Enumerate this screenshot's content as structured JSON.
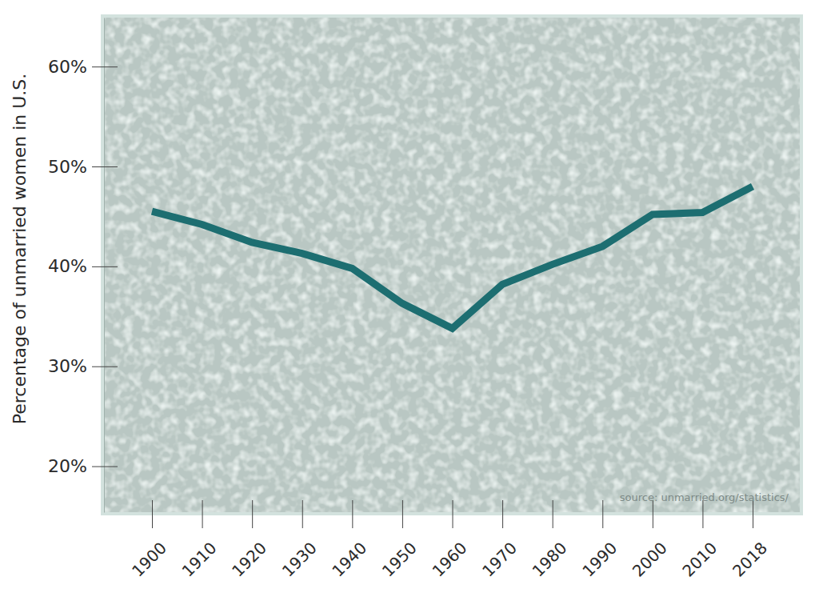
{
  "chart_data": {
    "type": "line",
    "y_label": "Percentage of unmarried women in U.S.",
    "annotations": [
      "source: unmarried.org/statistics/"
    ],
    "categories": [
      "1900",
      "1910",
      "1920",
      "1930",
      "1940",
      "1950",
      "1960",
      "1970",
      "1980",
      "1990",
      "2000",
      "2010",
      "2018"
    ],
    "values": [
      45.5,
      44.2,
      42.4,
      41.3,
      39.8,
      36.3,
      33.8,
      38.2,
      40.2,
      42.0,
      45.2,
      45.4,
      48.0
    ],
    "color": "#1d6e71",
    "ylim": [
      15.4,
      64.9
    ],
    "yticks": [
      {
        "value": 20,
        "label": "20%"
      },
      {
        "value": 30,
        "label": "30%"
      },
      {
        "value": 40,
        "label": "40%"
      },
      {
        "value": 50,
        "label": "50%"
      },
      {
        "value": 60,
        "label": "60%"
      }
    ],
    "grid": false
  }
}
